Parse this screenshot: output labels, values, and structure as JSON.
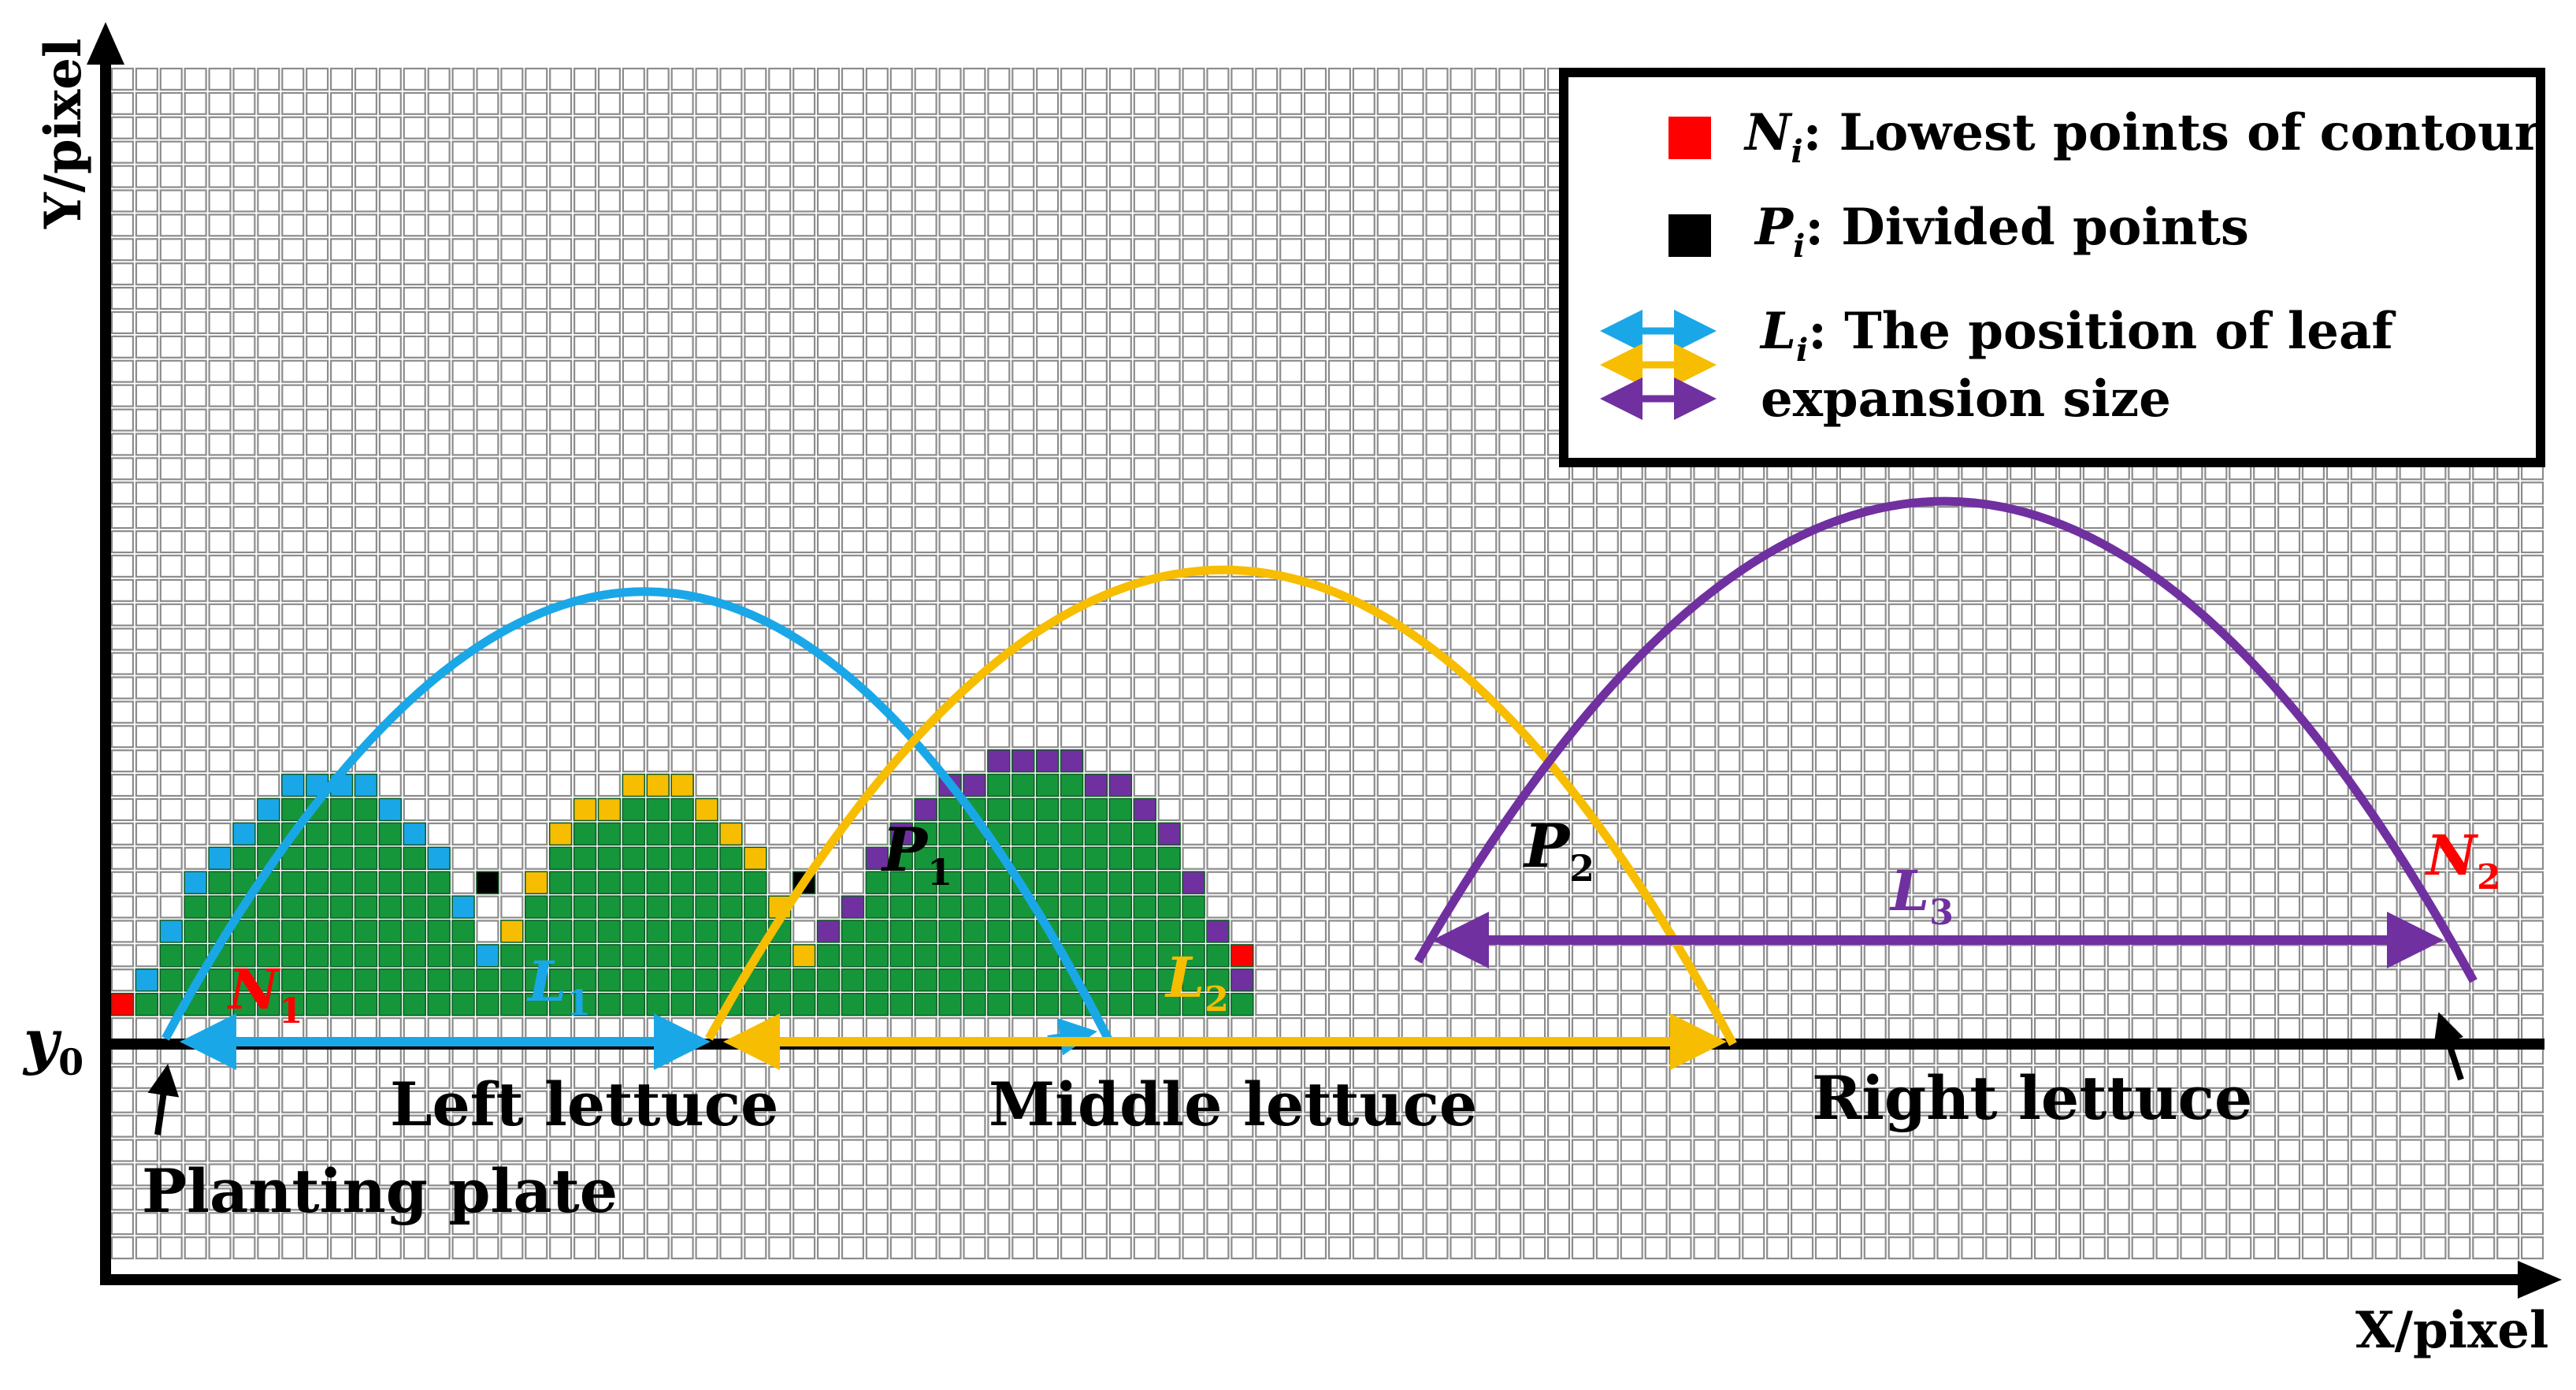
{
  "axes": {
    "y_label": "Y/pixel",
    "x_label": "X/pixel",
    "baseline_label": "y",
    "baseline_subscript": "0"
  },
  "legend": {
    "items": [
      {
        "marker": "red-square",
        "symbol": "N",
        "subscript": "i",
        "text": ": Lowest points of contour"
      },
      {
        "marker": "black-square",
        "symbol": "P",
        "subscript": "i",
        "text": ": Divided points"
      },
      {
        "marker": "arrows",
        "symbol": "L",
        "subscript": "i",
        "text": ": The position of leaf",
        "text_line2": "expansion size"
      }
    ]
  },
  "plants": {
    "left": {
      "name": "Left lettuce",
      "color": "#1aa7e8"
    },
    "middle": {
      "name": "Middle lettuce",
      "color": "#f7bd00"
    },
    "right": {
      "name": "Right lettuce",
      "color": "#7030a0"
    }
  },
  "points": {
    "N1": {
      "symbol": "N",
      "subscript": "1"
    },
    "N2": {
      "symbol": "N",
      "subscript": "2"
    },
    "P1": {
      "symbol": "P",
      "subscript": "1"
    },
    "P2": {
      "symbol": "P",
      "subscript": "2"
    }
  },
  "lines": {
    "L1": {
      "symbol": "L",
      "subscript": "1"
    },
    "L2": {
      "symbol": "L",
      "subscript": "2"
    },
    "L3": {
      "symbol": "L",
      "subscript": "3"
    }
  },
  "annotation": {
    "plate_label": "Planting plate"
  },
  "colors": {
    "canopy": "#16963a",
    "lowest_point": "#ff0000",
    "divided_point": "#000000",
    "grid": "#8c8c8c"
  }
}
